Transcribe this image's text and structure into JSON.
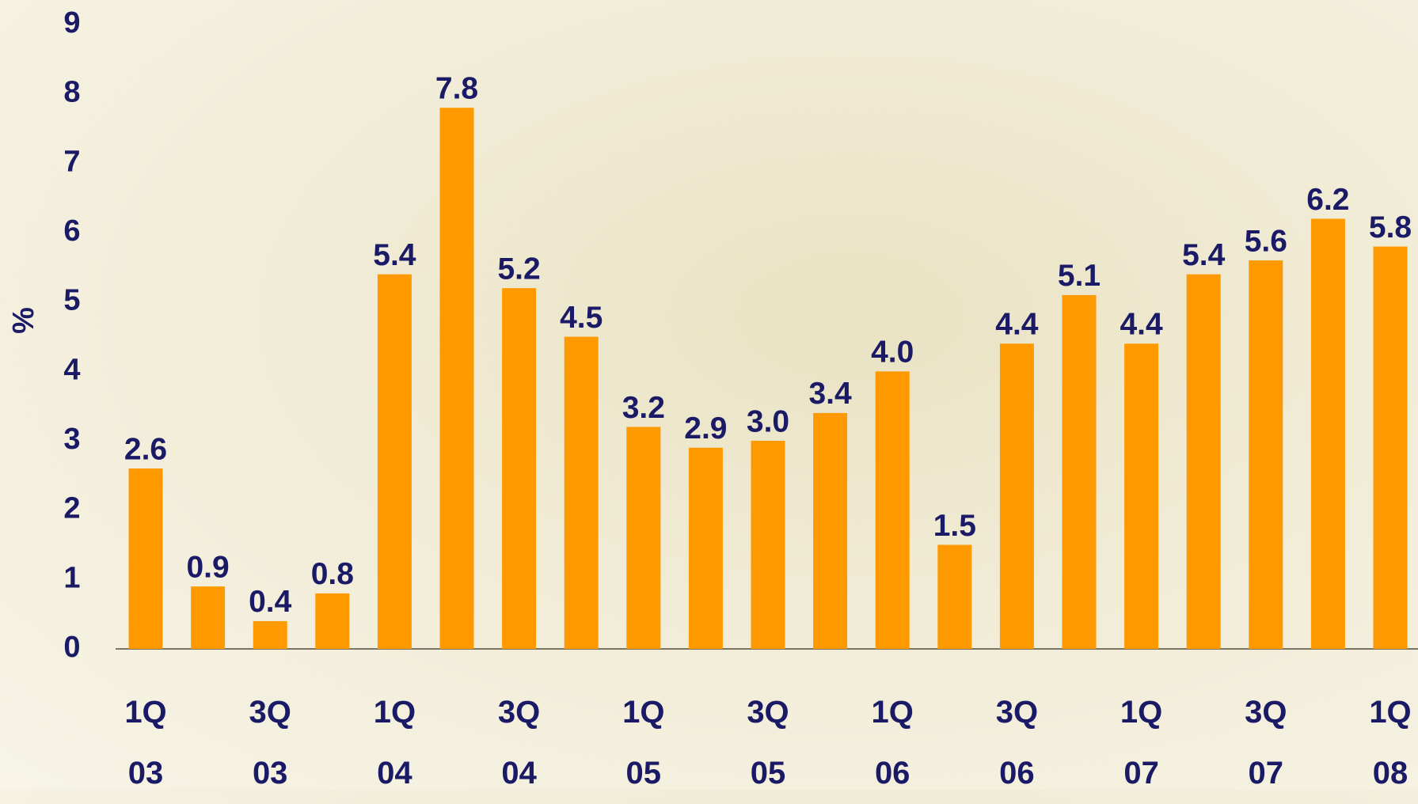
{
  "chart_data": {
    "type": "bar",
    "y_label": "%",
    "categories": [
      "1Q 03",
      null,
      "3Q 03",
      null,
      "1Q 04",
      null,
      "3Q 04",
      null,
      "1Q 05",
      null,
      "3Q 05",
      null,
      "1Q 06",
      null,
      "3Q 06",
      null,
      "1Q 07",
      null,
      "3Q 07",
      null,
      "1Q 08"
    ],
    "values": [
      2.6,
      0.9,
      0.4,
      0.8,
      5.4,
      7.8,
      5.2,
      4.5,
      3.2,
      2.9,
      3.0,
      3.4,
      4.0,
      1.5,
      4.4,
      5.1,
      4.4,
      5.4,
      5.6,
      6.2,
      5.8
    ],
    "value_labels": [
      "2.6",
      "0.9",
      "0.4",
      "0.8",
      "5.4",
      "7.8",
      "5.2",
      "4.5",
      "3.2",
      "2.9",
      "3.0",
      "3.4",
      "4.0",
      "1.5",
      "4.4",
      "5.1",
      "4.4",
      "5.4",
      "5.6",
      "6.2",
      "5.8"
    ],
    "color": "#ff9900",
    "ylim": [
      0,
      9
    ],
    "yticks": [
      0,
      1,
      2,
      3,
      4,
      5,
      6,
      7,
      8,
      9
    ],
    "grid": false
  }
}
